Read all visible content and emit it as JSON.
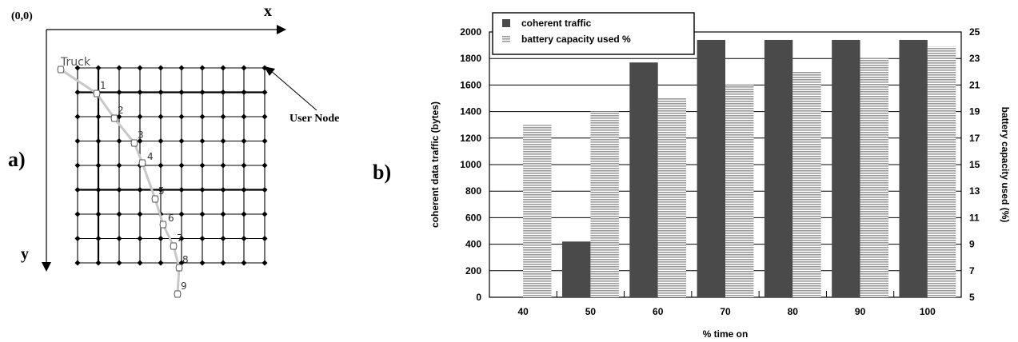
{
  "panel_a": {
    "label": "a)",
    "origin_label": "(0,0)",
    "x_axis_label": "x",
    "y_axis_label": "y",
    "truck_label": "Truck",
    "user_node_label": "User Node",
    "grid_columns": 9,
    "grid_rows": 8,
    "path_steps": [
      "1",
      "2",
      "3",
      "4",
      "5",
      "6",
      "7",
      "8",
      "9"
    ]
  },
  "panel_b": {
    "label": "b)"
  },
  "chart_data": {
    "type": "bar",
    "categories": [
      "40",
      "50",
      "60",
      "70",
      "80",
      "90",
      "100"
    ],
    "xlabel": "% time on",
    "ylabel_left": "coherent data traffic (bytes)",
    "ylabel_right": "battery capacity used (%)",
    "ylim_left": [
      0,
      2000
    ],
    "ylim_right": [
      5,
      25
    ],
    "yticks_left": [
      0,
      200,
      400,
      600,
      800,
      1000,
      1200,
      1400,
      1600,
      1800,
      2000
    ],
    "yticks_right": [
      5,
      7,
      9,
      11,
      13,
      15,
      17,
      19,
      21,
      23,
      25
    ],
    "grid": true,
    "legend_position": "top-left",
    "series": [
      {
        "name": "coherent traffic",
        "axis": "left",
        "color": "#4a4a4a",
        "values": [
          0,
          420,
          1770,
          1940,
          1940,
          1940,
          1940
        ]
      },
      {
        "name": "battery capacity used %",
        "axis": "right",
        "color": "#b8b8b8",
        "pattern": "horizontal-stripes",
        "values": [
          18,
          19,
          20,
          21,
          22,
          23,
          23.9
        ]
      }
    ]
  }
}
